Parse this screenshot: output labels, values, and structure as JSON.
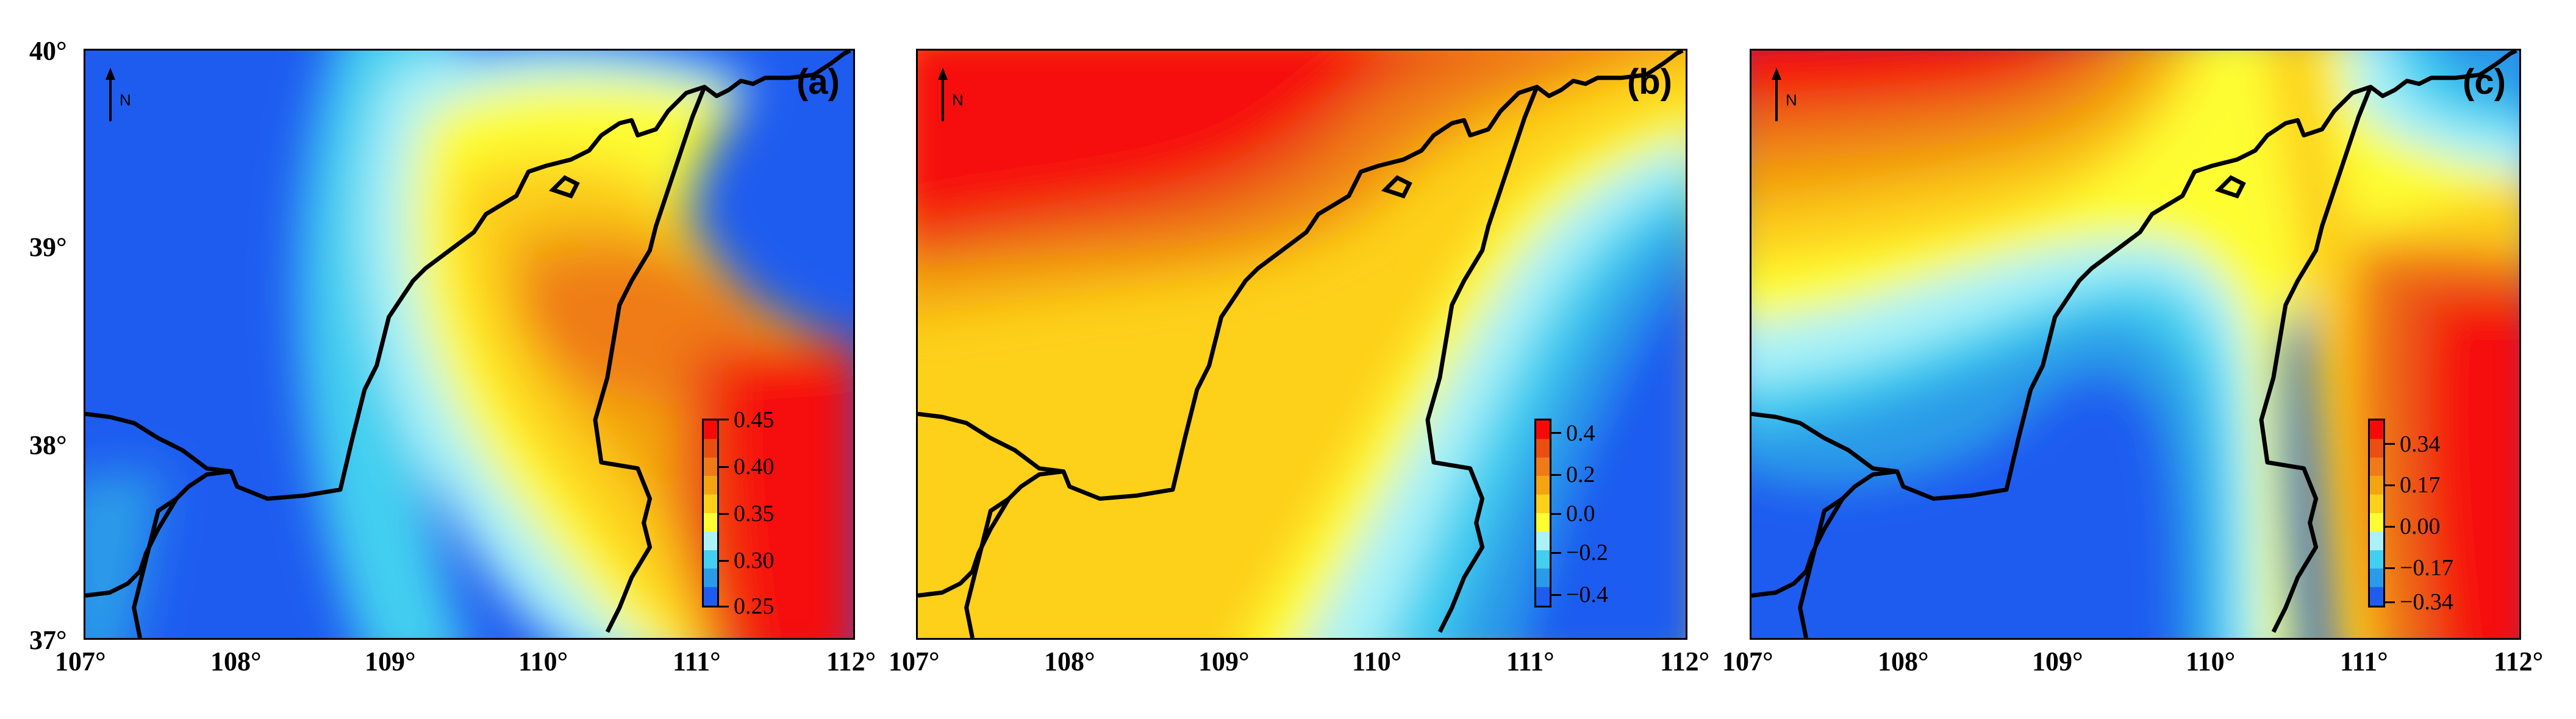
{
  "panels": [
    {
      "label": "(a)",
      "north": "N",
      "colorbar": {
        "ticks": [
          "0.45",
          "0.40",
          "0.35",
          "0.30",
          "0.25"
        ],
        "colors": [
          "#1e5cf0",
          "#2a9be8",
          "#43cff0",
          "#aaf2f8",
          "#fdfd33",
          "#fdd01a",
          "#f3a410",
          "#ef7b18",
          "#ea4f12",
          "#f60a08"
        ]
      }
    },
    {
      "label": "(b)",
      "north": "N",
      "colorbar": {
        "ticks": [
          "0.4",
          "0.2",
          "0.0",
          "−0.2",
          "−0.4"
        ],
        "colors": [
          "#1e5cf0",
          "#2a9be8",
          "#43cff0",
          "#aaf2f8",
          "#fdfd33",
          "#fdd01a",
          "#f3a410",
          "#ef7b18",
          "#ea4f12",
          "#f60a08"
        ]
      }
    },
    {
      "label": "(c)",
      "north": "N",
      "colorbar": {
        "ticks": [
          "0.34",
          "0.17",
          "0.00",
          "−0.17",
          "−0.34"
        ],
        "colors": [
          "#1e5cf0",
          "#2a9be8",
          "#43cff0",
          "#aaf2f8",
          "#fdfd33",
          "#fdd01a",
          "#f3a410",
          "#ef7b18",
          "#ea4f12",
          "#f60a08"
        ]
      }
    }
  ],
  "axes": {
    "y_labels": [
      "40°",
      "39°",
      "38°",
      "37°"
    ],
    "x_labels_a": [
      "107°",
      "108°",
      "109°",
      "110°",
      "111°",
      "112°"
    ],
    "x_labels_b": [
      "107°",
      "108°",
      "109°",
      "110°",
      "111°",
      "112°"
    ],
    "x_labels_c": [
      "107°",
      "108°",
      "109°",
      "110°",
      "111°",
      "112°"
    ]
  },
  "colors": {
    "low": "#1e5cf0",
    "mid": "#fdfd33",
    "high": "#f60a08"
  }
}
